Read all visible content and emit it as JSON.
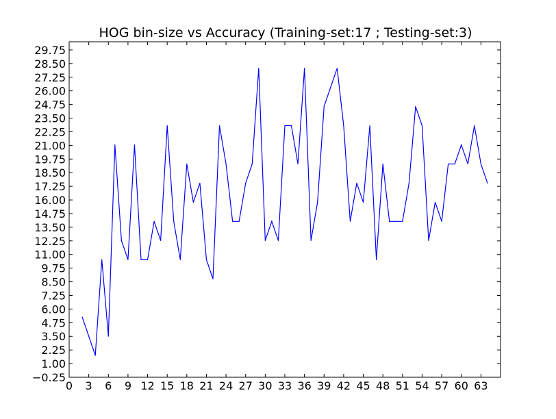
{
  "chart_data": {
    "type": "line",
    "title": "HOG bin-size vs Accuracy (Training-set:17 ; Testing-set:3)",
    "xlabel": "",
    "ylabel": "",
    "xlim": [
      0,
      66
    ],
    "ylim": [
      -0.25,
      30.5
    ],
    "grid": false,
    "line_color": "#0000ff",
    "x_ticks": [
      0,
      3,
      6,
      9,
      12,
      15,
      18,
      21,
      24,
      27,
      30,
      33,
      36,
      39,
      42,
      45,
      48,
      51,
      54,
      57,
      60,
      63
    ],
    "x_tick_labels": [
      "0",
      "3",
      "6",
      "9",
      "12",
      "15",
      "18",
      "21",
      "24",
      "27",
      "30",
      "33",
      "36",
      "39",
      "42",
      "45",
      "48",
      "51",
      "54",
      "57",
      "60",
      "63"
    ],
    "y_ticks": [
      -0.25,
      1.0,
      2.25,
      3.5,
      4.75,
      6.0,
      7.25,
      8.5,
      9.75,
      11.0,
      12.25,
      13.5,
      14.75,
      16.0,
      17.25,
      18.5,
      19.75,
      21.0,
      22.25,
      23.5,
      24.75,
      26.0,
      27.25,
      28.5,
      29.75
    ],
    "y_tick_labels": [
      "−0.25",
      "1.00",
      "2.25",
      "3.50",
      "4.75",
      "6.00",
      "7.25",
      "8.50",
      "9.75",
      "11.00",
      "12.25",
      "13.50",
      "14.75",
      "16.00",
      "17.25",
      "18.50",
      "19.75",
      "21.00",
      "22.25",
      "23.50",
      "24.75",
      "26.00",
      "27.25",
      "28.50",
      "29.75"
    ],
    "series": [
      {
        "name": "",
        "x": [
          2,
          3,
          4,
          5,
          6,
          7,
          8,
          9,
          10,
          11,
          12,
          13,
          14,
          15,
          16,
          17,
          18,
          19,
          20,
          21,
          22,
          23,
          24,
          25,
          26,
          27,
          28,
          29,
          30,
          31,
          32,
          33,
          34,
          35,
          36,
          37,
          38,
          39,
          40,
          41,
          42,
          43,
          44,
          45,
          46,
          47,
          48,
          49,
          50,
          51,
          52,
          53,
          54,
          55,
          56,
          57,
          58,
          59,
          60,
          61,
          62,
          63,
          64
        ],
        "y": [
          5.26,
          3.51,
          1.75,
          10.53,
          3.51,
          21.05,
          12.28,
          10.53,
          21.05,
          10.53,
          10.53,
          14.04,
          12.28,
          22.81,
          14.04,
          10.53,
          19.3,
          15.79,
          17.54,
          10.53,
          8.77,
          22.81,
          19.3,
          14.04,
          14.04,
          17.54,
          19.3,
          28.07,
          12.28,
          14.04,
          12.28,
          22.81,
          22.81,
          19.3,
          28.07,
          12.28,
          15.79,
          24.56,
          26.32,
          28.07,
          22.81,
          14.04,
          17.54,
          15.79,
          22.81,
          10.53,
          19.3,
          14.04,
          14.04,
          14.04,
          17.54,
          24.56,
          22.81,
          12.28,
          15.79,
          14.04,
          19.3,
          19.3,
          21.05,
          19.3,
          22.81,
          19.3,
          17.54
        ]
      }
    ]
  }
}
